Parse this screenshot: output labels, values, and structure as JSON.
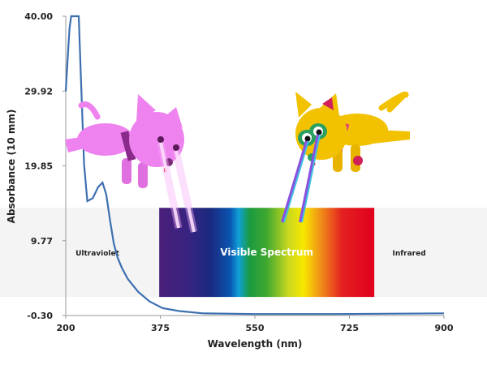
{
  "chart_data": {
    "type": "line",
    "title": "",
    "xlabel": "Wavelength (nm)",
    "ylabel": "Absorbance (10 mm)",
    "xlim": [
      200,
      900
    ],
    "ylim": [
      -0.3,
      40.0
    ],
    "xticks": [
      "200",
      "375",
      "550",
      "725",
      "900"
    ],
    "yticks": [
      "-0.30",
      "9.77",
      "19.85",
      "29.92",
      "40.00"
    ],
    "grid": false,
    "series": [
      {
        "color": "#3d6fb0",
        "x": [
          200,
          205,
          207,
          210,
          214,
          224,
          228,
          234,
          240,
          250,
          260,
          268,
          275,
          282,
          289,
          296,
          304,
          315,
          334,
          355,
          379,
          410,
          454,
          550,
          700,
          900
        ],
        "y": [
          29.9,
          36,
          38.4,
          40,
          40,
          40,
          32,
          20,
          15.1,
          15.5,
          17,
          17.6,
          16,
          12.5,
          9.4,
          7.5,
          6.1,
          4.6,
          2.9,
          1.6,
          0.7,
          0.3,
          0.0,
          -0.1,
          -0.1,
          0.0
        ]
      }
    ],
    "regions": [
      {
        "label": "Ultraviolet",
        "from": 200,
        "to": 373
      },
      {
        "label": "Visible Spectrum",
        "from": 373,
        "to": 771
      },
      {
        "label": "Infrared",
        "from": 771,
        "to": 900
      }
    ],
    "band_y": [
      2.2,
      14.2
    ]
  },
  "colors": {
    "band": "#f4f4f4",
    "pink_cat": "#ee82ee",
    "yellow_cat": "#f2c200"
  }
}
